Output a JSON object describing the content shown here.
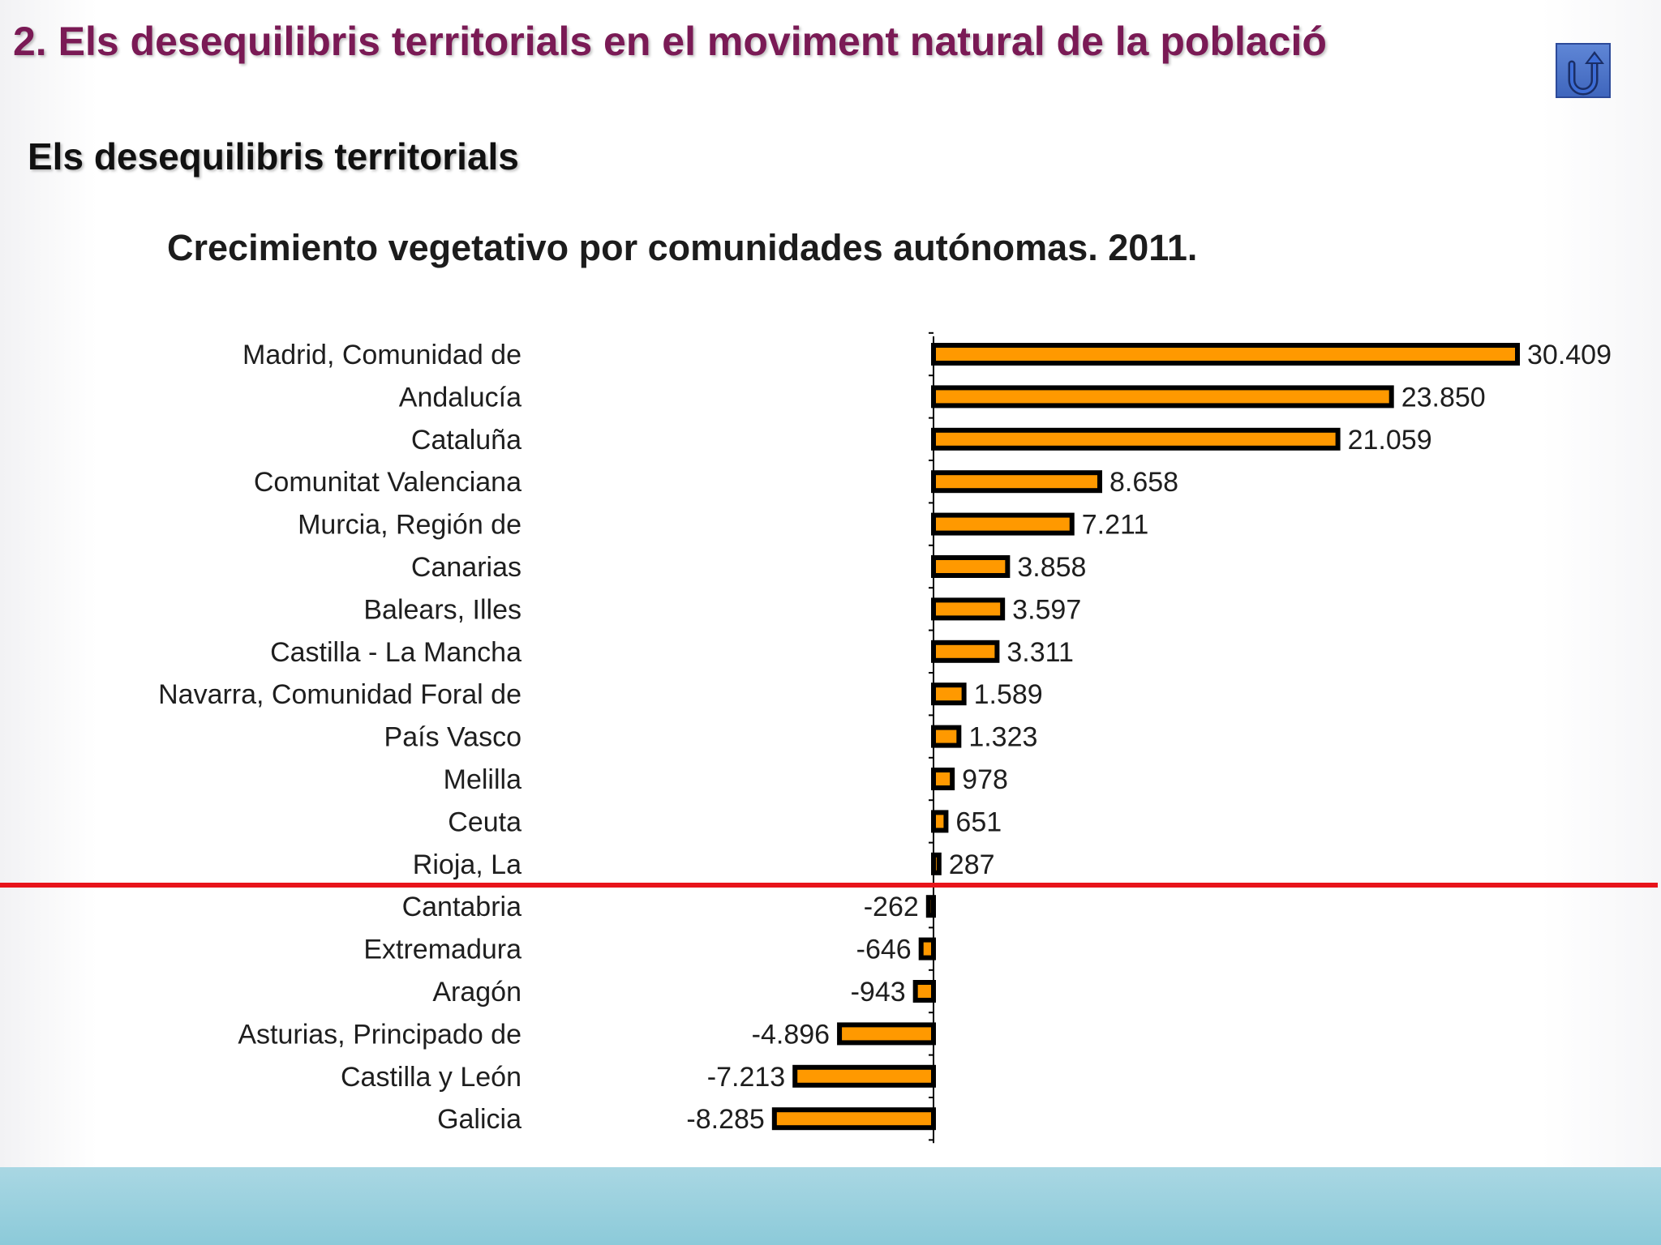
{
  "slide": {
    "title": "2. Els desequilibris territorials en el moviment natural de la població",
    "subtitle": "Els desequilibris territorials",
    "back_icon": "u-turn-arrow-icon",
    "colors": {
      "title": "#7a1a55",
      "button": "#4a72c8",
      "footer": "#9fd2df"
    }
  },
  "chart_data": {
    "type": "bar",
    "orientation": "horizontal",
    "title": "Crecimiento vegetativo por comunidades autónomas. 2011.",
    "xlabel": "",
    "ylabel": "",
    "categories": [
      "Madrid, Comunidad de",
      "Andalucía",
      "Cataluña",
      "Comunitat Valenciana",
      "Murcia, Región de",
      "Canarias",
      "Balears, Illes",
      "Castilla - La Mancha",
      "Navarra, Comunidad Foral de",
      "País Vasco",
      "Melilla",
      "Ceuta",
      "Rioja, La",
      "Cantabria",
      "Extremadura",
      "Aragón",
      "Asturias, Principado de",
      "Castilla y León",
      "Galicia"
    ],
    "values": [
      30409,
      23850,
      21059,
      8658,
      7211,
      3858,
      3597,
      3311,
      1589,
      1323,
      978,
      651,
      287,
      -262,
      -646,
      -943,
      -4896,
      -7213,
      -8285
    ],
    "value_labels": [
      "30.409",
      "23.850",
      "21.059",
      "8.658",
      "7.211",
      "3.858",
      "3.597",
      "3.311",
      "1.589",
      "1.323",
      "978",
      "651",
      "287",
      "-262",
      "-646",
      "-943",
      "-4.896",
      "-7.213",
      "-8.285"
    ],
    "bar_color": "#ff9900",
    "bar_outline": "#000000",
    "divider_color": "#e8141b",
    "grid": false,
    "legend": "none"
  }
}
